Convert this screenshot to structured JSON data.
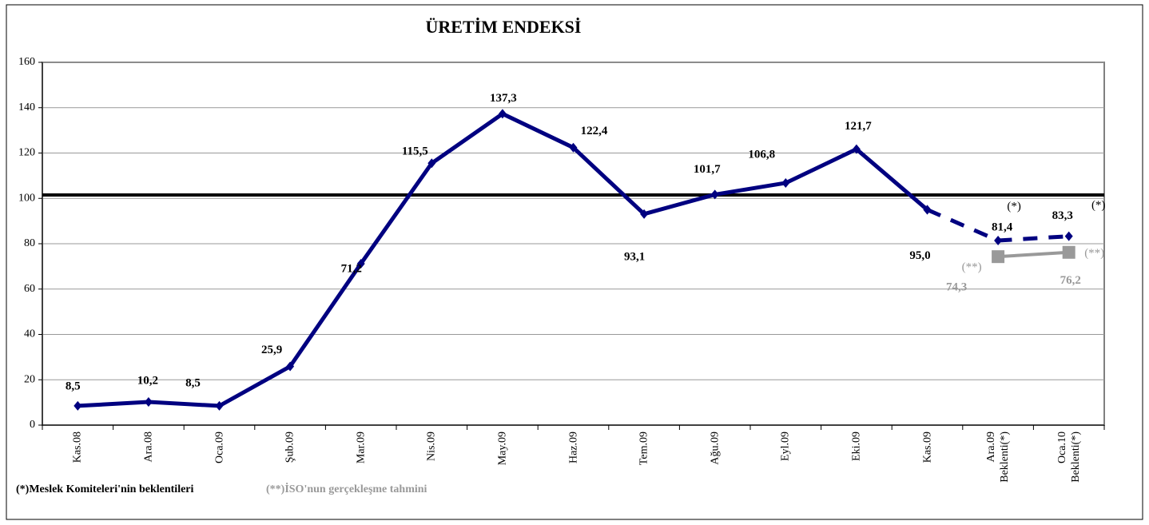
{
  "chart_data": {
    "type": "line",
    "title": "ÜRETİM ENDEKSİ",
    "categories": [
      "Kas.08",
      "Ara.08",
      "Oca.09",
      "Şub.09",
      "Mar.09",
      "Nis.09",
      "May.09",
      "Haz.09",
      "Tem.09",
      "Ağu.09",
      "Eyl.09",
      "Eki.09",
      "Kas.09",
      "Ara.09\nBeklenti(*)",
      "Oca.10\nBeklenti(*)"
    ],
    "series": [
      {
        "color": "#000080",
        "dashed": false,
        "marker": "diamond",
        "values": [
          8.5,
          10.2,
          8.5,
          25.9,
          71.2,
          115.5,
          137.3,
          122.4,
          93.1,
          101.7,
          106.8,
          121.7,
          95.0,
          null,
          null
        ],
        "value_labels": [
          "8,5",
          "10,2",
          "8,5",
          "25,9",
          "71,2",
          "115,5",
          "137,3",
          "122,4",
          "93,1",
          "101,7",
          "106,8",
          "121,7",
          "95,0",
          null,
          null
        ]
      },
      {
        "color": "#000080",
        "dashed": true,
        "marker": "diamond",
        "values": [
          null,
          null,
          null,
          null,
          null,
          null,
          null,
          null,
          null,
          null,
          null,
          null,
          95.0,
          81.4,
          83.3
        ],
        "value_labels": [
          null,
          null,
          null,
          null,
          null,
          null,
          null,
          null,
          null,
          null,
          null,
          null,
          null,
          "81,4",
          "83,3"
        ],
        "point_notes": [
          null,
          null,
          null,
          null,
          null,
          null,
          null,
          null,
          null,
          null,
          null,
          null,
          null,
          "(*)",
          "(*)"
        ]
      },
      {
        "color": "#999999",
        "dashed": false,
        "marker": "square",
        "values": [
          null,
          null,
          null,
          null,
          null,
          null,
          null,
          null,
          null,
          null,
          null,
          null,
          null,
          74.3,
          76.2
        ],
        "value_labels": [
          null,
          null,
          null,
          null,
          null,
          null,
          null,
          null,
          null,
          null,
          null,
          null,
          null,
          "74,3",
          "76,2"
        ],
        "point_notes": [
          null,
          null,
          null,
          null,
          null,
          null,
          null,
          null,
          null,
          null,
          null,
          null,
          null,
          "(**)",
          "(**)"
        ]
      }
    ],
    "reference_line": 101.5,
    "ylim": [
      0,
      160
    ],
    "yticks": [
      0,
      20,
      40,
      60,
      80,
      100,
      120,
      140,
      160
    ],
    "grid": true,
    "footnotes": [
      {
        "text": "(*)Meslek Komiteleri'nin beklentileri",
        "color": "#000000"
      },
      {
        "text": "(**)İSO'nun gerçekleşme tahmini",
        "color": "#999999"
      }
    ]
  }
}
